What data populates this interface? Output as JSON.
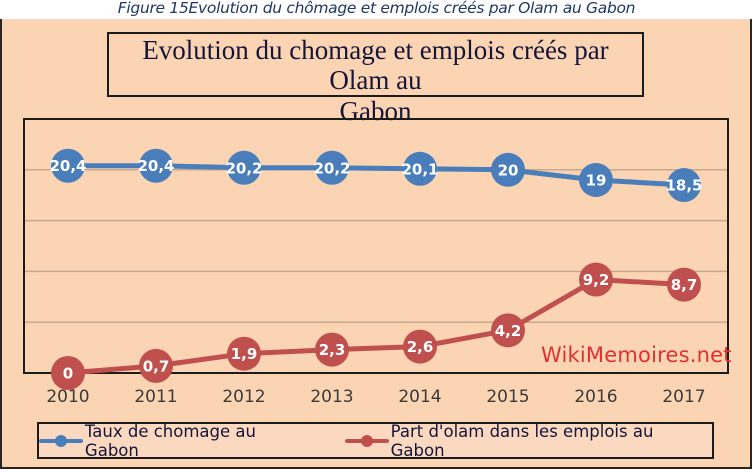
{
  "caption": "Figure 15Evolution du chômage et emplois créés par Olam au Gabon",
  "watermark": "WikiMemoires.net",
  "colors": {
    "panel_bg": "#fbd4b4",
    "series_blue": "#4a7ebb",
    "series_red": "#c0504d",
    "gridline": "#c9a98e",
    "watermark": "#e03131"
  },
  "chart_data": {
    "type": "line",
    "title_line1": "Evolution du chomage et emplois créés par Olam au",
    "title_line2": "Gabon",
    "categories": [
      "2010",
      "2011",
      "2012",
      "2013",
      "2014",
      "2015",
      "2016",
      "2017"
    ],
    "series": [
      {
        "name": "Taux de chomage au Gabon",
        "color": "#4a7ebb",
        "values": [
          20.4,
          20.4,
          20.2,
          20.2,
          20.1,
          20,
          19,
          18.5
        ],
        "labels": [
          "20,4",
          "20,4",
          "20,2",
          "20,2",
          "20,1",
          "20",
          "19",
          "18,5"
        ]
      },
      {
        "name": "Part d'olam dans les emplois au Gabon",
        "color": "#c0504d",
        "values": [
          0,
          0.7,
          1.9,
          2.3,
          2.6,
          4.2,
          9.2,
          8.7
        ],
        "labels": [
          "0",
          "0,7",
          "1,9",
          "2,3",
          "2,6",
          "4,2",
          "9,2",
          "8,7"
        ]
      }
    ],
    "ylim": [
      0,
      25
    ],
    "gridlines": [
      5,
      10,
      15,
      20
    ],
    "grid": true,
    "xlabel": "",
    "ylabel": "",
    "legend_position": "bottom"
  }
}
